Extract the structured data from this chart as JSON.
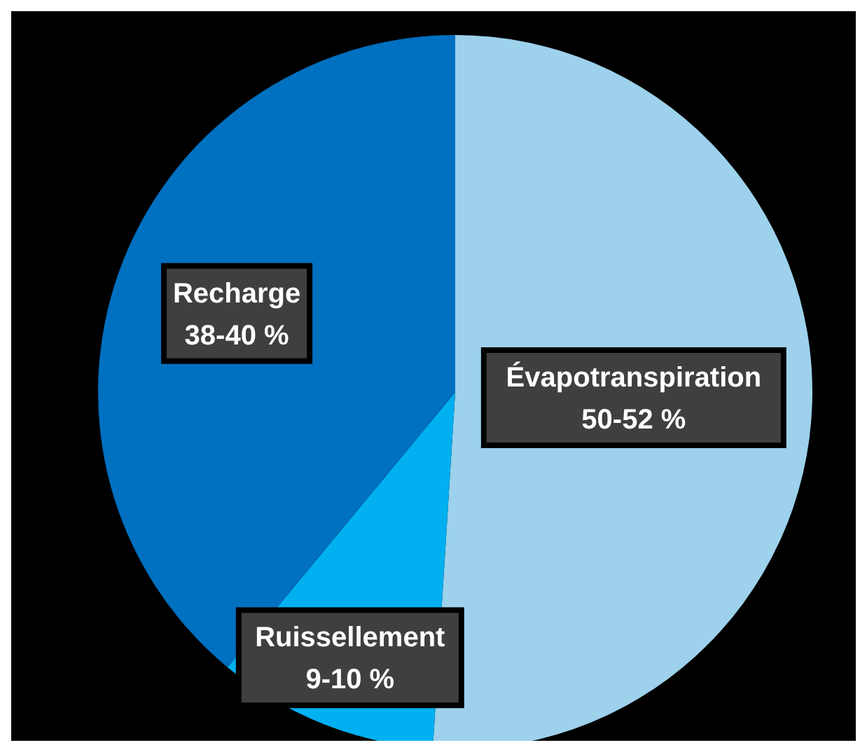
{
  "chart_data": {
    "type": "pie",
    "categories": [
      "Évapotranspiration",
      "Ruissellement",
      "Recharge"
    ],
    "values": [
      51,
      10,
      39
    ],
    "colors": [
      "#9dd1ec",
      "#00b0f0",
      "#0070c0"
    ],
    "annotations": [
      "50-52 %",
      "9-10 %",
      "38-40 %"
    ],
    "legend": false
  }
}
